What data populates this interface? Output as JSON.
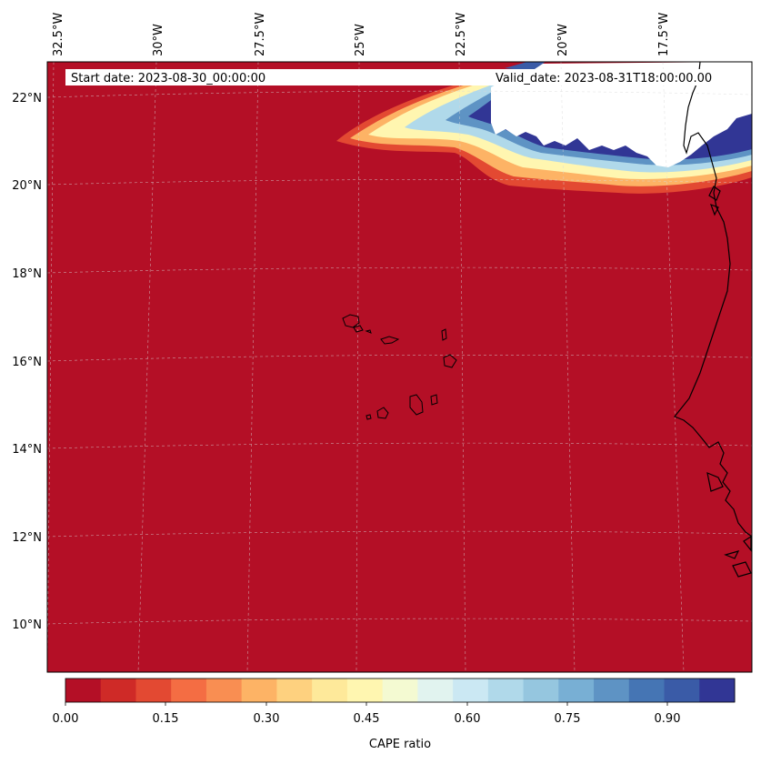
{
  "map": {
    "start_date": "Start date: 2023-08-30_00:00:00",
    "valid_date": "Valid_date: 2023-08-31T18:00:00.00",
    "background_color": "#b40f26",
    "lon_labels": [
      "32.5°W",
      "30°W",
      "27.5°W",
      "25°W",
      "22.5°W",
      "20°W",
      "17.5°W"
    ],
    "lat_labels": [
      "22°N",
      "20°N",
      "18°N",
      "16°N",
      "14°N",
      "12°N",
      "10°N"
    ]
  },
  "colorbar": {
    "label": "CAPE ratio",
    "tick_labels": [
      "0.00",
      "0.15",
      "0.30",
      "0.45",
      "0.60",
      "0.75",
      "0.90"
    ],
    "colors": [
      "#b40f26",
      "#cf2a27",
      "#e34932",
      "#f46d43",
      "#f98e52",
      "#fdb365",
      "#fed17f",
      "#fee99a",
      "#fff6b0",
      "#f4fad2",
      "#e1f3ef",
      "#cbe8f3",
      "#b0d9ea",
      "#95c6df",
      "#78afd4",
      "#5e93c4",
      "#4575b4",
      "#3a5ba7",
      "#313695"
    ]
  }
}
